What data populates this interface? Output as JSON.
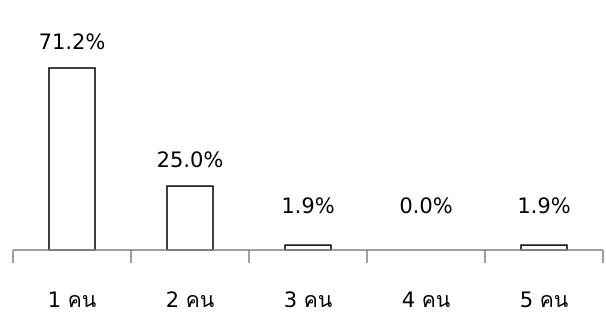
{
  "chart_data": {
    "type": "bar",
    "categories": [
      "1 คน",
      "2 คน",
      "3 คน",
      "4 คน",
      "5 คน"
    ],
    "values": [
      71.2,
      25.0,
      1.9,
      0.0,
      1.9
    ],
    "data_labels": [
      "71.2%",
      "25.0%",
      "1.9%",
      "0.0%",
      "1.9%"
    ],
    "unit": "%",
    "ylim": [
      0,
      75
    ],
    "grid": false,
    "legend": "none",
    "colors": {
      "bar_fill": "#ffffff",
      "bar_stroke": "#000000",
      "axis": "#808080",
      "text": "#000000"
    }
  }
}
